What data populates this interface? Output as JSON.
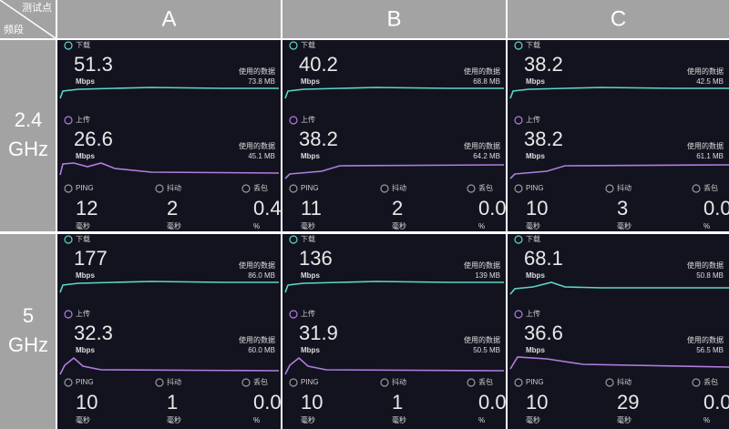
{
  "header": {
    "corner_top": "测试点",
    "corner_bottom": "频段",
    "columns": [
      "A",
      "B",
      "C"
    ]
  },
  "labels": {
    "download": "下载",
    "upload": "上传",
    "speed_unit": "Mbps",
    "data_used": "使用的数据",
    "ping": "PING",
    "jitter": "抖动",
    "loss": "丢包",
    "ms": "毫秒",
    "percent": "%"
  },
  "rows": [
    {
      "band": [
        "2.4",
        "GHz"
      ],
      "panels": [
        {
          "download": "51.3",
          "download_data": "73.8 MB",
          "upload": "26.6",
          "upload_data": "45.1 MB",
          "ping": "12",
          "jitter": "2",
          "loss": "0.4"
        },
        {
          "download": "40.2",
          "download_data": "68.8 MB",
          "upload": "38.2",
          "upload_data": "64.2 MB",
          "ping": "11",
          "jitter": "2",
          "loss": "0.0"
        },
        {
          "download": "38.2",
          "download_data": "42.5 MB",
          "upload": "38.2",
          "upload_data": "61.1 MB",
          "ping": "10",
          "jitter": "3",
          "loss": "0.0"
        }
      ]
    },
    {
      "band": [
        "5",
        "GHz"
      ],
      "panels": [
        {
          "download": "177",
          "download_data": "86.0 MB",
          "upload": "32.3",
          "upload_data": "60.0 MB",
          "ping": "10",
          "jitter": "1",
          "loss": "0.0"
        },
        {
          "download": "136",
          "download_data": "139 MB",
          "upload": "31.9",
          "upload_data": "50.5 MB",
          "ping": "10",
          "jitter": "1",
          "loss": "0.0"
        },
        {
          "download": "68.1",
          "download_data": "50.8 MB",
          "upload": "36.6",
          "upload_data": "56.5 MB",
          "ping": "10",
          "jitter": "29",
          "loss": "0.0"
        }
      ]
    }
  ]
}
